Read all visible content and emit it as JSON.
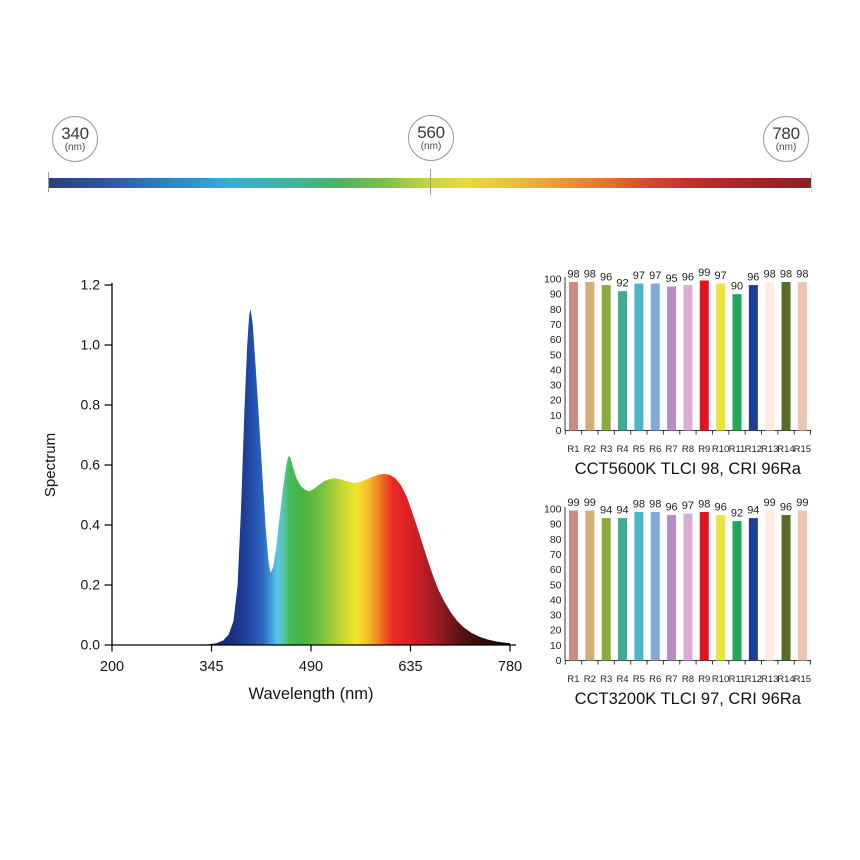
{
  "wavelength_scale": {
    "markers": [
      {
        "value": "340",
        "unit": "(nm)"
      },
      {
        "value": "560",
        "unit": "(nm)"
      },
      {
        "value": "780",
        "unit": "(nm)"
      }
    ],
    "bar_gradient": [
      {
        "offset": 0.0,
        "color": "#2c3e7e"
      },
      {
        "offset": 0.07,
        "color": "#2e539c"
      },
      {
        "offset": 0.16,
        "color": "#2f83c0"
      },
      {
        "offset": 0.24,
        "color": "#38aed8"
      },
      {
        "offset": 0.31,
        "color": "#42b3a2"
      },
      {
        "offset": 0.38,
        "color": "#4db264"
      },
      {
        "offset": 0.44,
        "color": "#7cbe4e"
      },
      {
        "offset": 0.5,
        "color": "#c5d643"
      },
      {
        "offset": 0.545,
        "color": "#e7da43"
      },
      {
        "offset": 0.6,
        "color": "#ecc33f"
      },
      {
        "offset": 0.665,
        "color": "#ea9c3a"
      },
      {
        "offset": 0.73,
        "color": "#e37331"
      },
      {
        "offset": 0.79,
        "color": "#d3472d"
      },
      {
        "offset": 0.845,
        "color": "#c42c2c"
      },
      {
        "offset": 0.92,
        "color": "#a62329"
      },
      {
        "offset": 1.0,
        "color": "#8a2125"
      }
    ]
  },
  "cri_bar_colors": [
    "#cb8c86",
    "#d2af74",
    "#8aaa3e",
    "#3eac8e",
    "#4ab6ca",
    "#81a8d7",
    "#b58cc4",
    "#daacd6",
    "#e31220",
    "#ece53b",
    "#20a757",
    "#1e3d94",
    "#fdece0",
    "#586c24",
    "#ebc4b2"
  ],
  "chart_data": [
    {
      "type": "area",
      "name": "spectral-power-distribution",
      "xlabel": "Wavelength (nm)",
      "ylabel": "Spectrum",
      "xlim": [
        200,
        780
      ],
      "ylim": [
        0,
        1.2
      ],
      "x_ticks": [
        "200",
        "345",
        "490",
        "635",
        "780"
      ],
      "y_ticks": [
        "0.0",
        "0.2",
        "0.4",
        "0.6",
        "0.8",
        "1.0",
        "1.2"
      ],
      "grid": false,
      "points": [
        [
          200,
          0
        ],
        [
          320,
          0
        ],
        [
          340,
          0.002
        ],
        [
          352,
          0.006
        ],
        [
          362,
          0.015
        ],
        [
          370,
          0.035
        ],
        [
          377,
          0.08
        ],
        [
          383,
          0.2
        ],
        [
          388,
          0.45
        ],
        [
          393,
          0.78
        ],
        [
          397,
          1.0
        ],
        [
          400,
          1.1
        ],
        [
          402,
          1.12
        ],
        [
          405,
          1.07
        ],
        [
          409,
          0.94
        ],
        [
          414,
          0.76
        ],
        [
          419,
          0.57
        ],
        [
          424,
          0.39
        ],
        [
          428,
          0.28
        ],
        [
          431,
          0.24
        ],
        [
          435,
          0.26
        ],
        [
          439,
          0.32
        ],
        [
          444,
          0.42
        ],
        [
          449,
          0.52
        ],
        [
          454,
          0.6
        ],
        [
          457,
          0.63
        ],
        [
          460,
          0.625
        ],
        [
          464,
          0.59
        ],
        [
          469,
          0.555
        ],
        [
          475,
          0.53
        ],
        [
          481,
          0.518
        ],
        [
          487,
          0.512
        ],
        [
          494,
          0.52
        ],
        [
          501,
          0.533
        ],
        [
          509,
          0.546
        ],
        [
          517,
          0.553
        ],
        [
          525,
          0.556
        ],
        [
          533,
          0.552
        ],
        [
          542,
          0.546
        ],
        [
          552,
          0.54
        ],
        [
          561,
          0.543
        ],
        [
          570,
          0.551
        ],
        [
          580,
          0.561
        ],
        [
          589,
          0.568
        ],
        [
          597,
          0.57
        ],
        [
          605,
          0.567
        ],
        [
          613,
          0.556
        ],
        [
          621,
          0.533
        ],
        [
          629,
          0.497
        ],
        [
          636,
          0.452
        ],
        [
          644,
          0.398
        ],
        [
          652,
          0.34
        ],
        [
          660,
          0.283
        ],
        [
          668,
          0.23
        ],
        [
          676,
          0.183
        ],
        [
          685,
          0.142
        ],
        [
          694,
          0.108
        ],
        [
          703,
          0.08
        ],
        [
          713,
          0.058
        ],
        [
          724,
          0.04
        ],
        [
          736,
          0.027
        ],
        [
          748,
          0.018
        ],
        [
          762,
          0.011
        ],
        [
          775,
          0.007
        ],
        [
          780,
          0.006
        ]
      ],
      "fill_gradient": [
        {
          "offset": 0.24,
          "color": "#101d5c"
        },
        {
          "offset": 0.3,
          "color": "#182f82"
        },
        {
          "offset": 0.335,
          "color": "#1e3f99"
        },
        {
          "offset": 0.355,
          "color": "#2350ae"
        },
        {
          "offset": 0.378,
          "color": "#2c66bd"
        },
        {
          "offset": 0.398,
          "color": "#3f97d6"
        },
        {
          "offset": 0.415,
          "color": "#58c6e8"
        },
        {
          "offset": 0.43,
          "color": "#55c6b0"
        },
        {
          "offset": 0.447,
          "color": "#48ba58"
        },
        {
          "offset": 0.478,
          "color": "#46b343"
        },
        {
          "offset": 0.52,
          "color": "#71bf40"
        },
        {
          "offset": 0.555,
          "color": "#a3cb3a"
        },
        {
          "offset": 0.59,
          "color": "#d5da33"
        },
        {
          "offset": 0.615,
          "color": "#f2e42e"
        },
        {
          "offset": 0.642,
          "color": "#f4bf2a"
        },
        {
          "offset": 0.665,
          "color": "#f29026"
        },
        {
          "offset": 0.685,
          "color": "#ee5a23"
        },
        {
          "offset": 0.705,
          "color": "#e92b28"
        },
        {
          "offset": 0.745,
          "color": "#dd1f26"
        },
        {
          "offset": 0.79,
          "color": "#b41d23"
        },
        {
          "offset": 0.83,
          "color": "#8c1a1e"
        },
        {
          "offset": 0.87,
          "color": "#611316"
        },
        {
          "offset": 0.915,
          "color": "#390b0d"
        },
        {
          "offset": 1.0,
          "color": "#170405"
        }
      ]
    },
    {
      "type": "bar",
      "name": "cri-5600k",
      "title": "CCT5600K TLCI 98, CRI 96Ra",
      "categories": [
        "R1",
        "R2",
        "R3",
        "R4",
        "R5",
        "R6",
        "R7",
        "R8",
        "R9",
        "R10",
        "R11",
        "R12",
        "R13",
        "R14",
        "R15"
      ],
      "values": [
        98,
        98,
        96,
        92,
        97,
        97,
        95,
        96,
        99,
        97,
        90,
        96,
        98,
        98,
        98
      ],
      "ylim": [
        0,
        100
      ],
      "y_ticks": [
        "0",
        "10",
        "20",
        "30",
        "40",
        "50",
        "60",
        "70",
        "80",
        "90",
        "100"
      ],
      "grid": false,
      "legend": false
    },
    {
      "type": "bar",
      "name": "cri-3200k",
      "title": "CCT3200K TLCI 97, CRI 96Ra",
      "categories": [
        "R1",
        "R2",
        "R3",
        "R4",
        "R5",
        "R6",
        "R7",
        "R8",
        "R9",
        "R10",
        "R11",
        "R12",
        "R13",
        "R14",
        "R15"
      ],
      "values": [
        99,
        99,
        94,
        94,
        98,
        98,
        96,
        97,
        98,
        96,
        92,
        94,
        99,
        96,
        99
      ],
      "ylim": [
        0,
        100
      ],
      "y_ticks": [
        "0",
        "10",
        "20",
        "30",
        "40",
        "50",
        "60",
        "70",
        "80",
        "90",
        "100"
      ],
      "grid": false,
      "legend": false
    }
  ]
}
